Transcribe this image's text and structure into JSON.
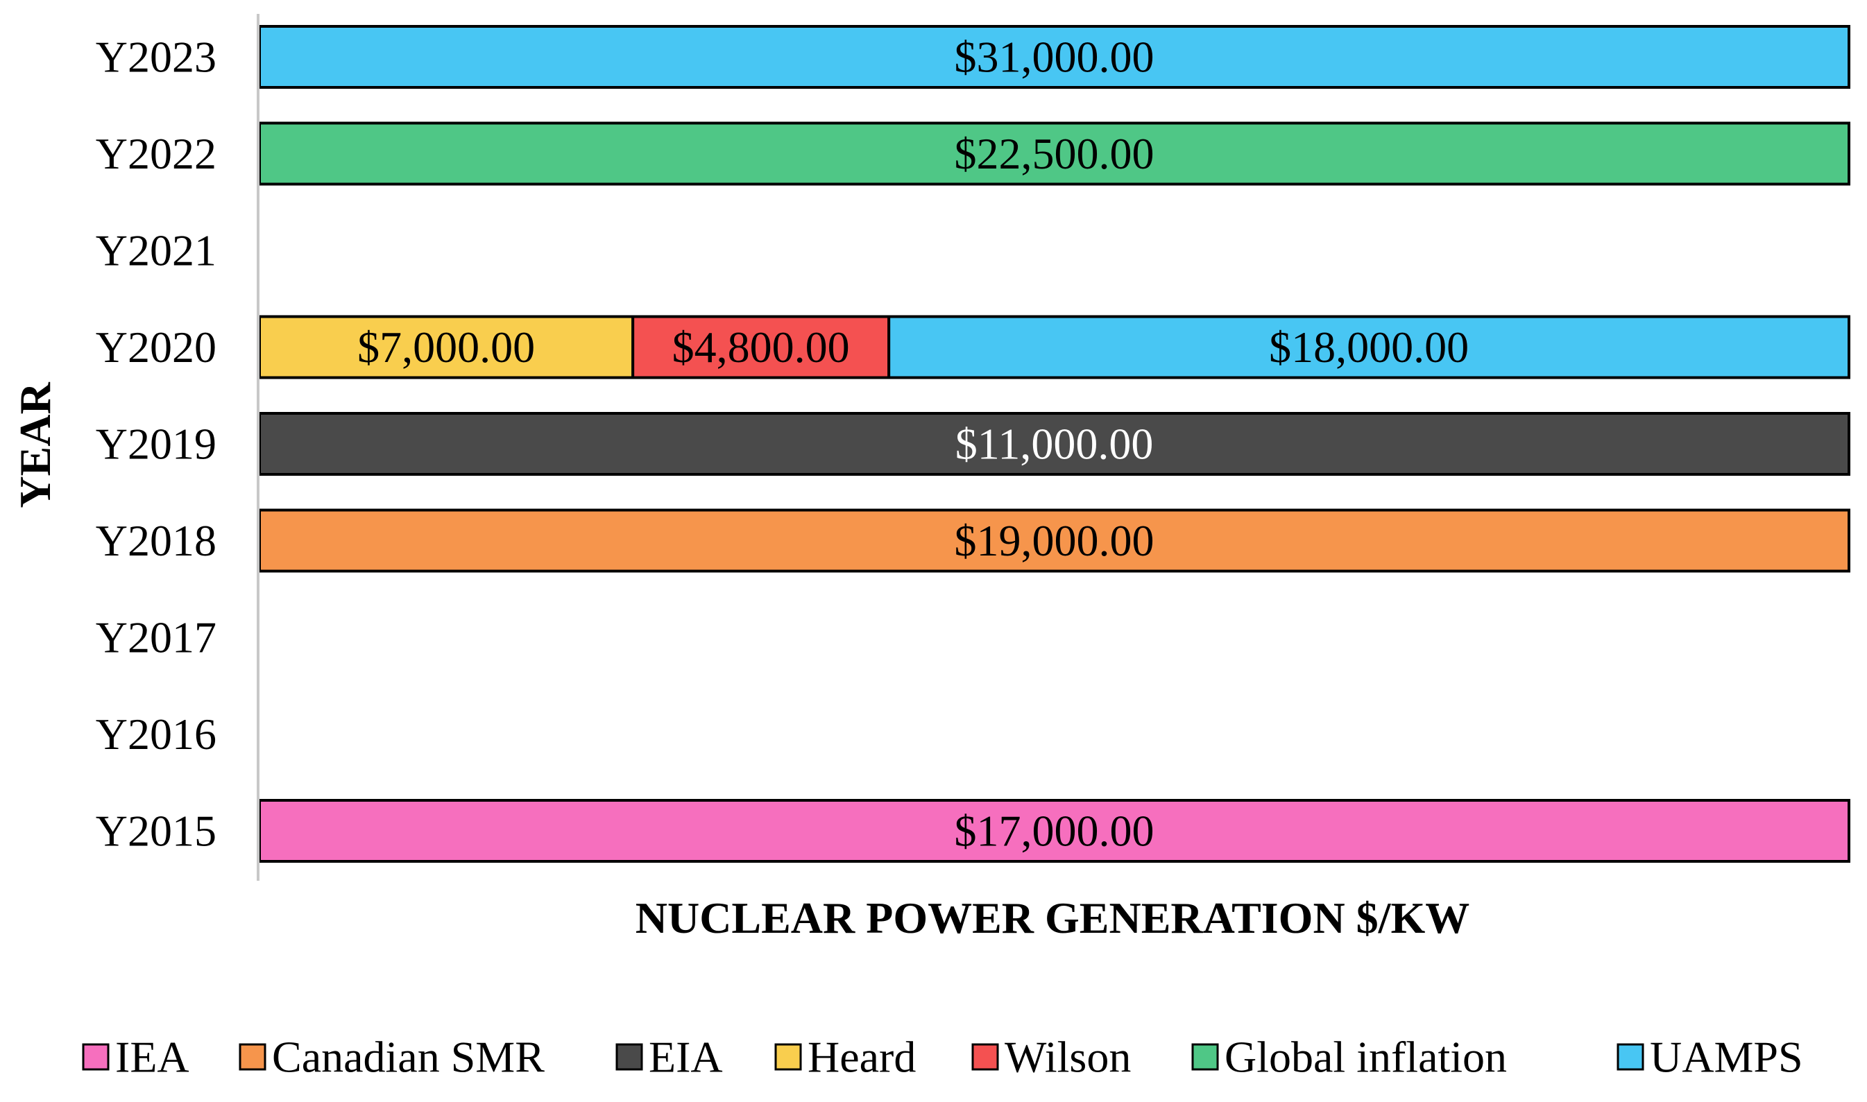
{
  "chart_data": {
    "type": "bar",
    "orientation": "horizontal",
    "stacked": "percent",
    "title": "",
    "xlabel": "NUCLEAR POWER GENERATION $/KW",
    "ylabel": "YEAR",
    "grid": false,
    "legend_position": "bottom",
    "categories": [
      "Y2015",
      "Y2016",
      "Y2017",
      "Y2018",
      "Y2019",
      "Y2020",
      "Y2021",
      "Y2022",
      "Y2023"
    ],
    "series": [
      {
        "name": "IEA",
        "color": "#F66FBE",
        "text_color": "#000000",
        "values": [
          17000,
          null,
          null,
          null,
          null,
          null,
          null,
          null,
          null
        ],
        "labels": [
          "$17,000.00",
          "",
          "",
          "",
          "",
          "",
          "",
          "",
          ""
        ]
      },
      {
        "name": "Canadian SMR",
        "color": "#F6954C",
        "text_color": "#000000",
        "values": [
          null,
          null,
          null,
          19000,
          null,
          null,
          null,
          null,
          null
        ],
        "labels": [
          "",
          "",
          "",
          "$19,000.00",
          "",
          "",
          "",
          "",
          ""
        ]
      },
      {
        "name": "EIA",
        "color": "#4A4A4A",
        "text_color": "#FFFFFF",
        "values": [
          null,
          null,
          null,
          null,
          11000,
          null,
          null,
          null,
          null
        ],
        "labels": [
          "",
          "",
          "",
          "",
          "$11,000.00",
          "",
          "",
          "",
          ""
        ]
      },
      {
        "name": "Heard",
        "color": "#F9CE4E",
        "text_color": "#000000",
        "values": [
          null,
          null,
          null,
          null,
          null,
          7000,
          null,
          null,
          null
        ],
        "labels": [
          "",
          "",
          "",
          "",
          "",
          "$7,000.00",
          "",
          "",
          ""
        ]
      },
      {
        "name": "Wilson",
        "color": "#F45151",
        "text_color": "#000000",
        "values": [
          null,
          null,
          null,
          null,
          null,
          4800,
          null,
          null,
          null
        ],
        "labels": [
          "",
          "",
          "",
          "",
          "",
          "$4,800.00",
          "",
          "",
          ""
        ]
      },
      {
        "name": "Global inflation",
        "color": "#4FC786",
        "text_color": "#000000",
        "values": [
          null,
          null,
          null,
          null,
          null,
          null,
          null,
          22500,
          null
        ],
        "labels": [
          "",
          "",
          "",
          "",
          "",
          "",
          "",
          "$22,500.00",
          ""
        ]
      },
      {
        "name": "UAMPS",
        "color": "#48C6F3",
        "text_color": "#000000",
        "values": [
          null,
          null,
          null,
          null,
          null,
          18000,
          null,
          null,
          31000
        ],
        "labels": [
          "",
          "",
          "",
          "",
          "",
          "$18,000.00",
          "",
          "",
          "$31,000.00"
        ]
      }
    ]
  }
}
